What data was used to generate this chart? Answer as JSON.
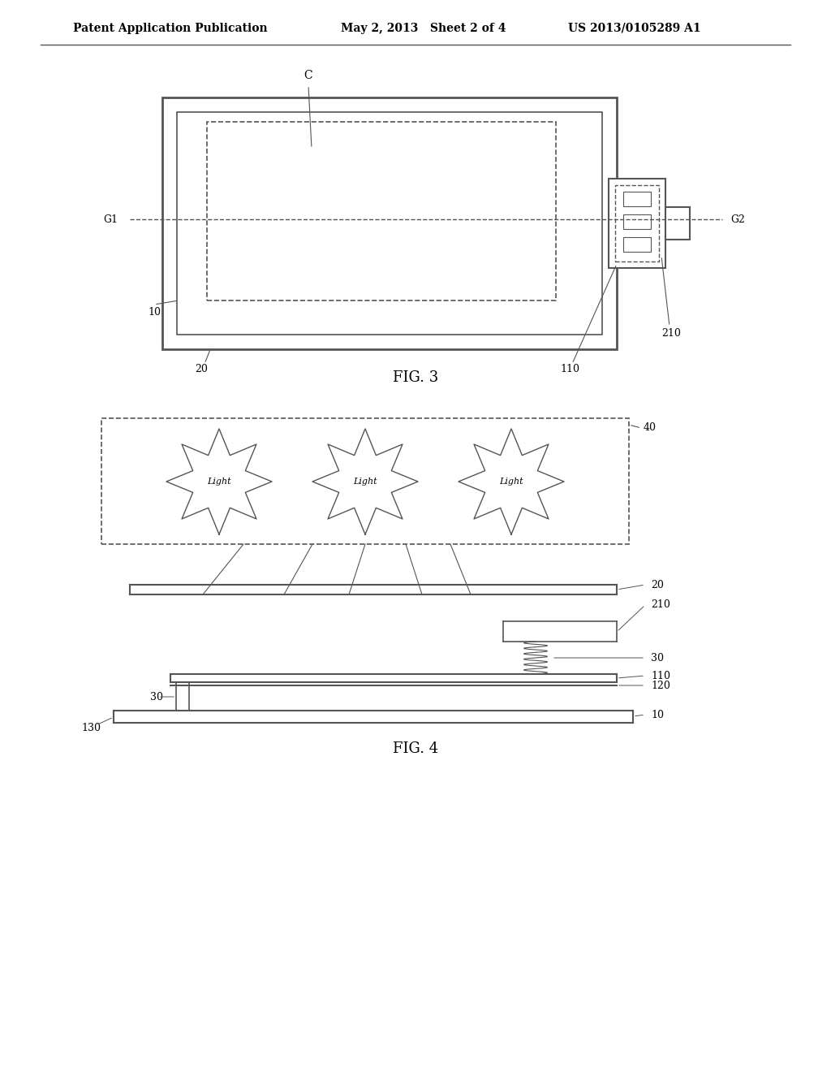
{
  "bg_color": "#ffffff",
  "header_left": "Patent Application Publication",
  "header_mid": "May 2, 2013   Sheet 2 of 4",
  "header_right": "US 2013/0105289 A1",
  "fig3_label": "FIG. 3",
  "fig4_label": "FIG. 4",
  "line_color": "#555555",
  "text_color": "#000000"
}
